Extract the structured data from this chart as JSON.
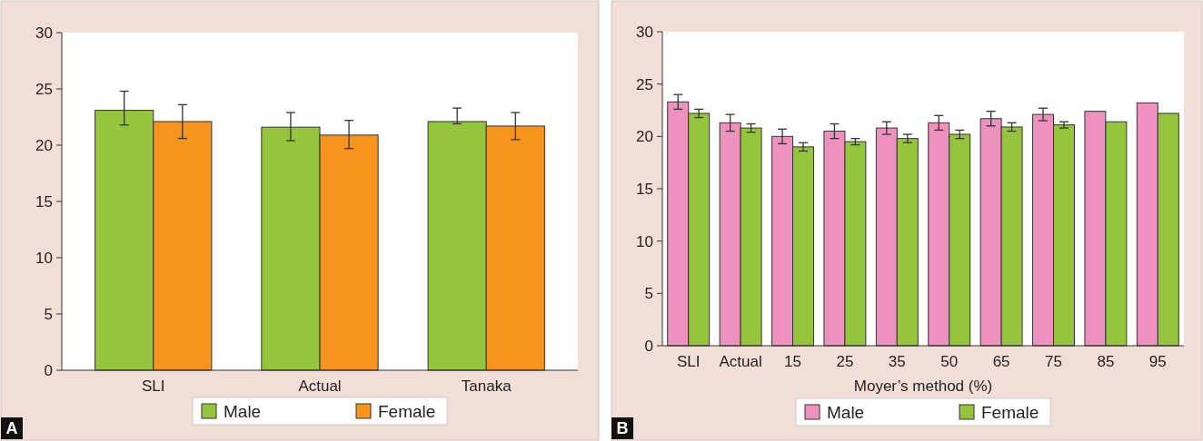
{
  "chart_data": [
    {
      "type": "bar",
      "categories": [
        "SLI",
        "Actual",
        "Tanaka"
      ],
      "ylim": [
        0,
        30
      ],
      "yticks": [
        0,
        5,
        10,
        15,
        20,
        25,
        30
      ],
      "legend": "bottom",
      "annotations": [
        "A"
      ],
      "series": [
        {
          "name": "Male",
          "color": "#95c53d",
          "values": [
            23.1,
            21.6,
            22.1
          ],
          "errors": [
            [
              21.8,
              24.8
            ],
            [
              20.4,
              22.9
            ],
            [
              21.9,
              23.3
            ]
          ]
        },
        {
          "name": "Female",
          "color": "#f7941d",
          "values": [
            22.1,
            20.9,
            21.7
          ],
          "errors": [
            [
              20.6,
              23.6
            ],
            [
              19.7,
              22.2
            ],
            [
              20.5,
              22.9
            ]
          ]
        }
      ]
    },
    {
      "type": "bar",
      "categories": [
        "SLI",
        "Actual",
        "15",
        "25",
        "35",
        "50",
        "65",
        "75",
        "85",
        "95"
      ],
      "xlabel": "Moyer’s method (%)",
      "ylim": [
        0,
        30
      ],
      "yticks": [
        0,
        5,
        10,
        15,
        20,
        25,
        30
      ],
      "legend": "bottom",
      "annotations": [
        "B"
      ],
      "series": [
        {
          "name": "Male",
          "color": "#ef91be",
          "values": [
            23.3,
            21.3,
            20.0,
            20.5,
            20.8,
            21.3,
            21.7,
            22.1,
            22.4,
            23.2
          ],
          "errors": [
            0.7,
            0.8,
            0.7,
            0.7,
            0.6,
            0.7,
            0.7,
            0.6,
            null,
            null
          ]
        },
        {
          "name": "Female",
          "color": "#95c53d",
          "values": [
            22.2,
            20.8,
            19.0,
            19.5,
            19.8,
            20.2,
            20.9,
            21.1,
            21.4,
            22.2
          ],
          "errors": [
            0.4,
            0.4,
            0.4,
            0.3,
            0.4,
            0.4,
            0.4,
            0.3,
            null,
            null
          ]
        }
      ]
    }
  ]
}
